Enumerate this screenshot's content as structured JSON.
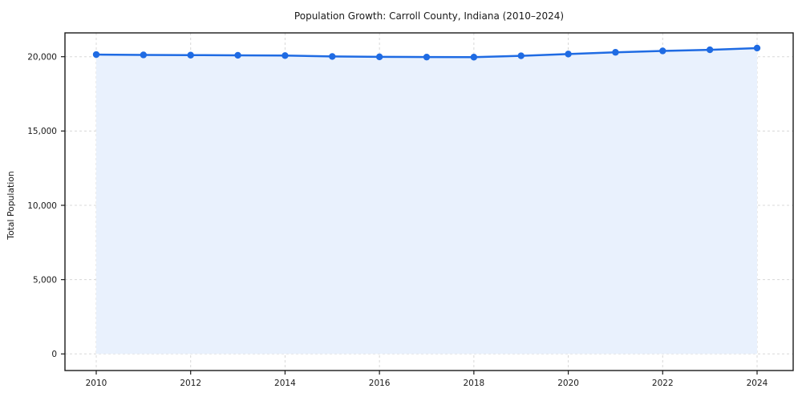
{
  "chart_data": {
    "type": "line",
    "title": "Population Growth: Carroll County, Indiana (2010–2024)",
    "xlabel": "",
    "ylabel": "Total Population",
    "x": [
      2010,
      2011,
      2012,
      2013,
      2014,
      2015,
      2016,
      2017,
      2018,
      2019,
      2020,
      2021,
      2022,
      2023,
      2024
    ],
    "series": [
      {
        "name": "Total Population",
        "values": [
          20145,
          20120,
          20105,
          20095,
          20075,
          20015,
          19990,
          19975,
          19970,
          20060,
          20180,
          20295,
          20390,
          20465,
          20580
        ]
      }
    ],
    "xticks": [
      2010,
      2012,
      2014,
      2016,
      2018,
      2020,
      2022,
      2024
    ],
    "xtick_labels": [
      "2010",
      "2012",
      "2014",
      "2016",
      "2018",
      "2020",
      "2022",
      "2024"
    ],
    "yticks": [
      0,
      5000,
      10000,
      15000,
      20000
    ],
    "ytick_labels": [
      "0",
      "5,000",
      "10,000",
      "15,000",
      "20,000"
    ],
    "ylim": [
      0,
      21600
    ],
    "xlim": [
      2009.3,
      2024.77
    ],
    "grid": true,
    "grid_style": "dashed",
    "legend": false,
    "area_fill": true,
    "marker": "circle",
    "colors": {
      "line": "#1f6be3",
      "marker": "#1f6be3",
      "fill": "#e9f1fd",
      "grid": "#d8d8d8",
      "spine": "#1a1a1a",
      "text": "#1a1a1a",
      "background": "#ffffff"
    }
  }
}
